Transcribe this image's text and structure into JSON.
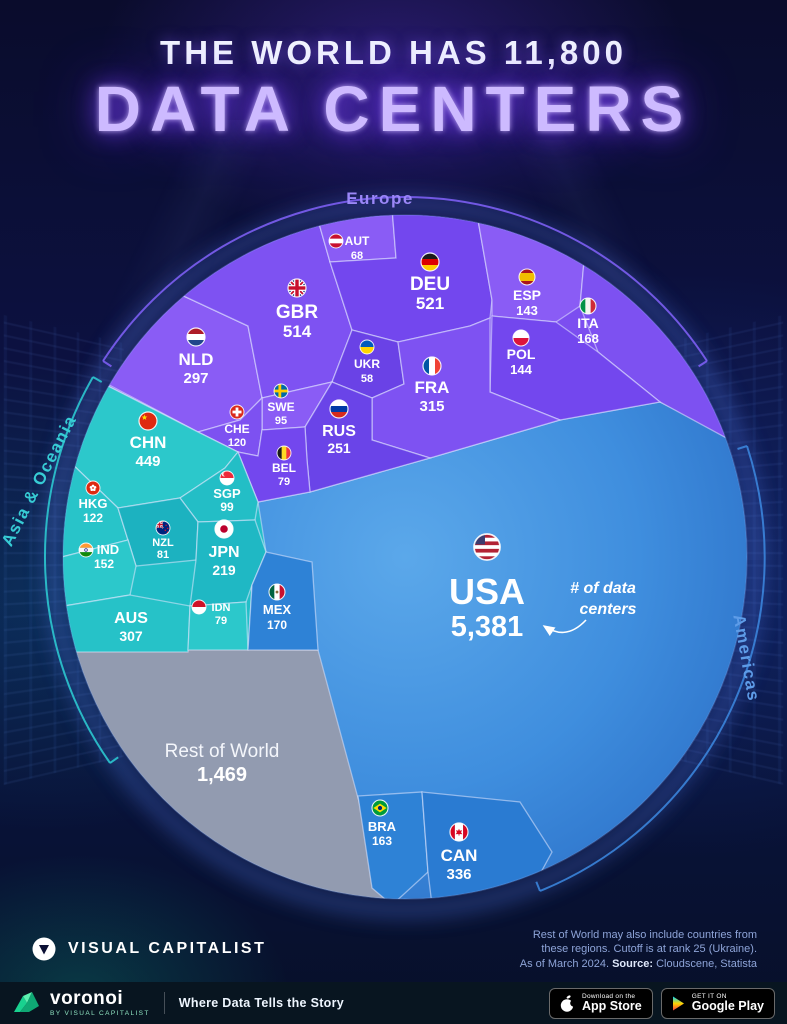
{
  "header": {
    "title_line1": "THE WORLD HAS 11,800",
    "title_line2": "DATA CENTERS"
  },
  "chart_data": {
    "type": "voronoi_treemap",
    "title": "The World Has 11,800 Data Centers",
    "total": 11800,
    "unit": "data centers",
    "annotation": {
      "line1": "# of data",
      "line2": "centers"
    },
    "regions": [
      {
        "name": "Europe",
        "color": "#7c4ef0"
      },
      {
        "name": "Asia & Oceania",
        "color": "#22bfc8"
      },
      {
        "name": "Americas",
        "color": "#2e7fd6"
      },
      {
        "name": "Rest of World",
        "color": "#929bb0"
      }
    ],
    "countries": [
      {
        "code": "USA",
        "value": 5381,
        "display": "5,381",
        "region": "Americas"
      },
      {
        "code": "DEU",
        "value": 521,
        "display": "521",
        "region": "Europe"
      },
      {
        "code": "GBR",
        "value": 514,
        "display": "514",
        "region": "Europe"
      },
      {
        "code": "CHN",
        "value": 449,
        "display": "449",
        "region": "Asia & Oceania"
      },
      {
        "code": "CAN",
        "value": 336,
        "display": "336",
        "region": "Americas"
      },
      {
        "code": "FRA",
        "value": 315,
        "display": "315",
        "region": "Europe"
      },
      {
        "code": "AUS",
        "value": 307,
        "display": "307",
        "region": "Asia & Oceania"
      },
      {
        "code": "NLD",
        "value": 297,
        "display": "297",
        "region": "Europe"
      },
      {
        "code": "RUS",
        "value": 251,
        "display": "251",
        "region": "Europe"
      },
      {
        "code": "JPN",
        "value": 219,
        "display": "219",
        "region": "Asia & Oceania"
      },
      {
        "code": "MEX",
        "value": 170,
        "display": "170",
        "region": "Americas"
      },
      {
        "code": "ITA",
        "value": 168,
        "display": "168",
        "region": "Europe"
      },
      {
        "code": "BRA",
        "value": 163,
        "display": "163",
        "region": "Americas"
      },
      {
        "code": "IND",
        "value": 152,
        "display": "152",
        "region": "Asia & Oceania"
      },
      {
        "code": "POL",
        "value": 144,
        "display": "144",
        "region": "Europe"
      },
      {
        "code": "ESP",
        "value": 143,
        "display": "143",
        "region": "Europe"
      },
      {
        "code": "HKG",
        "value": 122,
        "display": "122",
        "region": "Asia & Oceania"
      },
      {
        "code": "CHE",
        "value": 120,
        "display": "120",
        "region": "Europe"
      },
      {
        "code": "SGP",
        "value": 99,
        "display": "99",
        "region": "Asia & Oceania"
      },
      {
        "code": "SWE",
        "value": 95,
        "display": "95",
        "region": "Europe"
      },
      {
        "code": "NZL",
        "value": 81,
        "display": "81",
        "region": "Asia & Oceania"
      },
      {
        "code": "BEL",
        "value": 79,
        "display": "79",
        "region": "Europe"
      },
      {
        "code": "IDN",
        "value": 79,
        "display": "79",
        "region": "Asia & Oceania"
      },
      {
        "code": "AUT",
        "value": 68,
        "display": "68",
        "region": "Europe"
      },
      {
        "code": "UKR",
        "value": 58,
        "display": "58",
        "region": "Europe"
      },
      {
        "code": "ROW",
        "label": "Rest of World",
        "value": 1469,
        "display": "1,469",
        "region": "Rest of World"
      }
    ]
  },
  "footer": {
    "vc_logo": "VISUAL CAPITALIST",
    "note_line1": "Rest of World may also include countries from",
    "note_line2": "these regions. Cutoff is at rank 25 (Ukraine).",
    "note_line3_prefix": "As of March 2024. ",
    "note_source_label": "Source:",
    "note_source": " Cloudscene, Statista"
  },
  "bottombar": {
    "brand": "voronoi",
    "brand_sub": "BY VISUAL CAPITALIST",
    "tagline": "Where Data Tells the Story",
    "appstore_line1": "Download on the",
    "appstore_line2": "App Store",
    "gplay_line1": "GET IT ON",
    "gplay_line2": "Google Play"
  }
}
